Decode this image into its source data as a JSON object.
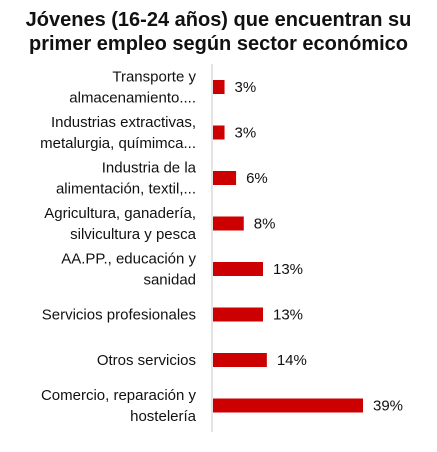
{
  "chart_data": {
    "type": "bar",
    "orientation": "horizontal",
    "title_lines": [
      "Jóvenes (16-24 años) que encuentran su",
      "primer empleo según sector económico"
    ],
    "categories": [
      [
        "Transporte y",
        "almacenamiento...."
      ],
      [
        "Industrias extractivas,",
        "metalurgia, químimca..."
      ],
      [
        "Industria de la",
        "alimentación, textil,..."
      ],
      [
        "Agricultura, ganadería,",
        "silvicultura y pesca"
      ],
      [
        "AA.PP., educación y",
        "sanidad"
      ],
      [
        "Servicios profesionales"
      ],
      [
        "Otros servicios"
      ],
      [
        "Comercio, reparación y",
        "hostelería"
      ]
    ],
    "values": [
      3,
      3,
      6,
      8,
      13,
      13,
      14,
      39
    ],
    "value_labels": [
      "3%",
      "3%",
      "6%",
      "8%",
      "13%",
      "13%",
      "14%",
      "39%"
    ],
    "unit": "%",
    "xlim": [
      0,
      39
    ],
    "grid": false,
    "legend": "none",
    "bar_color": "#cc0000"
  }
}
